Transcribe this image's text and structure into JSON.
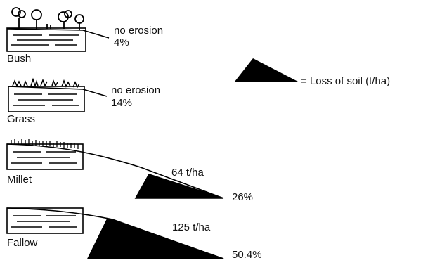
{
  "legend": {
    "label": "= Loss of soil (t/ha)"
  },
  "rows": [
    {
      "name": "Bush",
      "loss_label": "no erosion",
      "runoff": "4%"
    },
    {
      "name": "Grass",
      "loss_label": "no erosion",
      "runoff": "14%"
    },
    {
      "name": "Millet",
      "loss_label": "64 t/ha",
      "runoff": "26%"
    },
    {
      "name": "Fallow",
      "loss_label": "125 t/ha",
      "runoff": "50.4%"
    }
  ]
}
